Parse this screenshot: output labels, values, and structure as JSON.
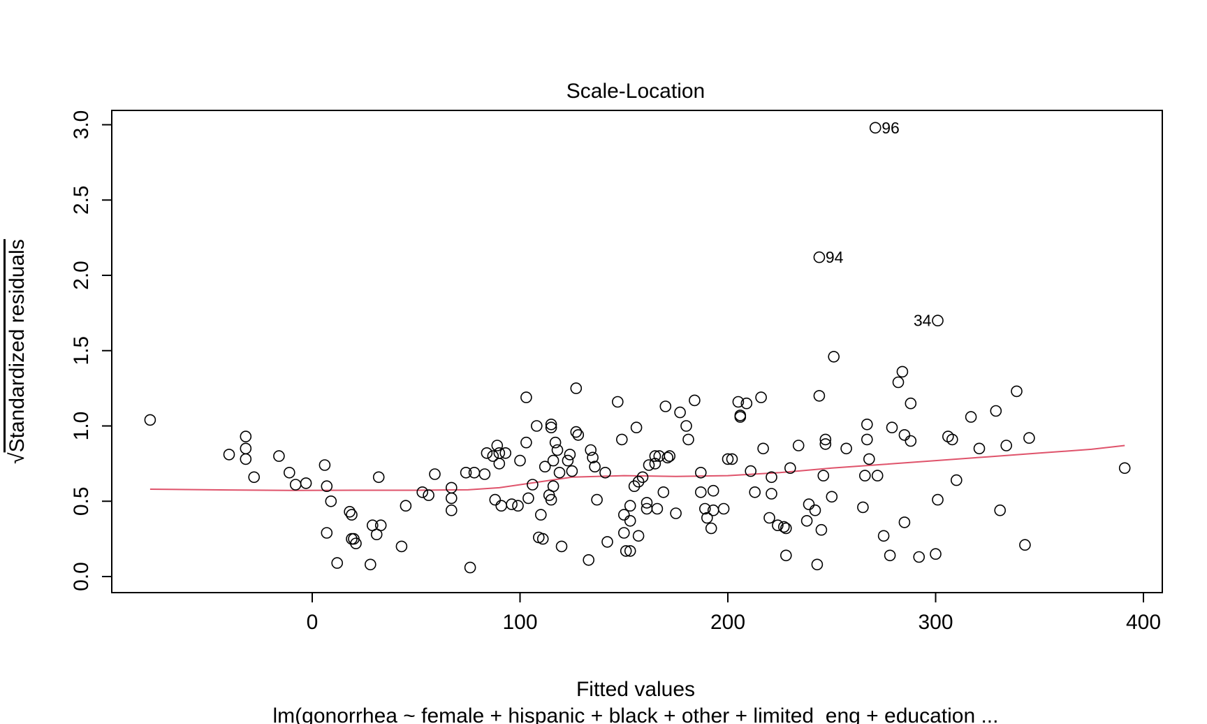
{
  "chart_data": {
    "type": "scatter",
    "title": "Scale-Location",
    "xlabel": "Fitted values",
    "ylabel": "Standardized residuals",
    "ylabel_prefix": "√",
    "subtitle": "lm(gonorrhea ~ female + hispanic + black + other + limited_eng + education  ...",
    "xlim": [
      -90,
      405
    ],
    "ylim": [
      -0.1,
      3.1
    ],
    "x_ticks": [
      0,
      100,
      200,
      300,
      400
    ],
    "y_ticks": [
      0.0,
      0.5,
      1.0,
      1.5,
      2.0,
      2.5,
      3.0
    ],
    "y_tick_labels": [
      "0.0",
      "0.5",
      "1.0",
      "1.5",
      "2.0",
      "2.5",
      "3.0"
    ],
    "grid": false,
    "colors": {
      "points": "#000000",
      "smoother": "#DF536B"
    },
    "points": [
      [
        -78,
        1.04
      ],
      [
        -40,
        0.81
      ],
      [
        -32,
        0.93
      ],
      [
        -32,
        0.85
      ],
      [
        -32,
        0.78
      ],
      [
        -28,
        0.66
      ],
      [
        -16,
        0.8
      ],
      [
        -11,
        0.69
      ],
      [
        -8,
        0.61
      ],
      [
        -3,
        0.62
      ],
      [
        6,
        0.74
      ],
      [
        7,
        0.6
      ],
      [
        7,
        0.29
      ],
      [
        9,
        0.5
      ],
      [
        12,
        0.09
      ],
      [
        18,
        0.43
      ],
      [
        19,
        0.41
      ],
      [
        19,
        0.25
      ],
      [
        20,
        0.25
      ],
      [
        21,
        0.22
      ],
      [
        28,
        0.08
      ],
      [
        29,
        0.34
      ],
      [
        31,
        0.28
      ],
      [
        32,
        0.66
      ],
      [
        33,
        0.34
      ],
      [
        43,
        0.2
      ],
      [
        45,
        0.47
      ],
      [
        53,
        0.56
      ],
      [
        56,
        0.54
      ],
      [
        59,
        0.68
      ],
      [
        67,
        0.59
      ],
      [
        67,
        0.52
      ],
      [
        67,
        0.44
      ],
      [
        74,
        0.69
      ],
      [
        76,
        0.06
      ],
      [
        78,
        0.69
      ],
      [
        83,
        0.68
      ],
      [
        84,
        0.82
      ],
      [
        87,
        0.8
      ],
      [
        88,
        0.51
      ],
      [
        89,
        0.87
      ],
      [
        90,
        0.82
      ],
      [
        90,
        0.75
      ],
      [
        91,
        0.47
      ],
      [
        93,
        0.82
      ],
      [
        96,
        0.48
      ],
      [
        99,
        0.47
      ],
      [
        100,
        0.77
      ],
      [
        103,
        0.89
      ],
      [
        103,
        1.19
      ],
      [
        104,
        0.52
      ],
      [
        106,
        0.61
      ],
      [
        108,
        1.0
      ],
      [
        109,
        0.26
      ],
      [
        110,
        0.41
      ],
      [
        111,
        0.25
      ],
      [
        112,
        0.73
      ],
      [
        114,
        0.54
      ],
      [
        115,
        0.51
      ],
      [
        115,
        1.01
      ],
      [
        115,
        0.99
      ],
      [
        116,
        0.6
      ],
      [
        116,
        0.77
      ],
      [
        117,
        0.89
      ],
      [
        118,
        0.84
      ],
      [
        119,
        0.69
      ],
      [
        120,
        0.2
      ],
      [
        123,
        0.77
      ],
      [
        124,
        0.81
      ],
      [
        125,
        0.7
      ],
      [
        127,
        0.96
      ],
      [
        127,
        1.25
      ],
      [
        128,
        0.94
      ],
      [
        133,
        0.11
      ],
      [
        134,
        0.84
      ],
      [
        135,
        0.79
      ],
      [
        136,
        0.73
      ],
      [
        137,
        0.51
      ],
      [
        141,
        0.69
      ],
      [
        142,
        0.23
      ],
      [
        147,
        1.16
      ],
      [
        149,
        0.91
      ],
      [
        150,
        0.41
      ],
      [
        150,
        0.29
      ],
      [
        151,
        0.17
      ],
      [
        153,
        0.17
      ],
      [
        153,
        0.37
      ],
      [
        153,
        0.47
      ],
      [
        155,
        0.6
      ],
      [
        156,
        0.99
      ],
      [
        157,
        0.27
      ],
      [
        157,
        0.63
      ],
      [
        159,
        0.66
      ],
      [
        161,
        0.49
      ],
      [
        161,
        0.45
      ],
      [
        162,
        0.74
      ],
      [
        165,
        0.8
      ],
      [
        165,
        0.75
      ],
      [
        166,
        0.45
      ],
      [
        167,
        0.8
      ],
      [
        169,
        0.56
      ],
      [
        170,
        1.13
      ],
      [
        171,
        0.79
      ],
      [
        172,
        0.8
      ],
      [
        175,
        0.42
      ],
      [
        177,
        1.09
      ],
      [
        180,
        1.0
      ],
      [
        181,
        0.91
      ],
      [
        184,
        1.17
      ],
      [
        187,
        0.69
      ],
      [
        187,
        0.56
      ],
      [
        189,
        0.45
      ],
      [
        190,
        0.39
      ],
      [
        192,
        0.32
      ],
      [
        193,
        0.57
      ],
      [
        193,
        0.44
      ],
      [
        198,
        0.45
      ],
      [
        200,
        0.78
      ],
      [
        202,
        0.78
      ],
      [
        205,
        1.16
      ],
      [
        206,
        1.07
      ],
      [
        206,
        1.06
      ],
      [
        209,
        1.15
      ],
      [
        211,
        0.7
      ],
      [
        213,
        0.56
      ],
      [
        216,
        1.19
      ],
      [
        217,
        0.85
      ],
      [
        220,
        0.39
      ],
      [
        221,
        0.55
      ],
      [
        221,
        0.66
      ],
      [
        224,
        0.34
      ],
      [
        227,
        0.33
      ],
      [
        228,
        0.14
      ],
      [
        228,
        0.32
      ],
      [
        230,
        0.72
      ],
      [
        234,
        0.87
      ],
      [
        238,
        0.37
      ],
      [
        239,
        0.48
      ],
      [
        242,
        0.44
      ],
      [
        243,
        0.08
      ],
      [
        244,
        1.2
      ],
      [
        245,
        0.31
      ],
      [
        246,
        0.67
      ],
      [
        247,
        0.91
      ],
      [
        247,
        0.88
      ],
      [
        250,
        0.53
      ],
      [
        251,
        1.46
      ],
      [
        257,
        0.85
      ],
      [
        265,
        0.46
      ],
      [
        266,
        0.67
      ],
      [
        267,
        1.01
      ],
      [
        267,
        0.91
      ],
      [
        268,
        0.78
      ],
      [
        272,
        0.67
      ],
      [
        275,
        0.27
      ],
      [
        278,
        0.14
      ],
      [
        279,
        0.99
      ],
      [
        282,
        1.29
      ],
      [
        284,
        1.36
      ],
      [
        285,
        0.36
      ],
      [
        285,
        0.94
      ],
      [
        288,
        1.15
      ],
      [
        288,
        0.9
      ],
      [
        292,
        0.13
      ],
      [
        300,
        0.15
      ],
      [
        301,
        0.51
      ],
      [
        306,
        0.93
      ],
      [
        308,
        0.91
      ],
      [
        310,
        0.64
      ],
      [
        317,
        1.06
      ],
      [
        321,
        0.85
      ],
      [
        329,
        1.1
      ],
      [
        331,
        0.44
      ],
      [
        334,
        0.87
      ],
      [
        339,
        1.23
      ],
      [
        343,
        0.21
      ],
      [
        345,
        0.92
      ],
      [
        391,
        0.72
      ],
      [
        244,
        2.12
      ],
      [
        271,
        2.98
      ],
      [
        301,
        1.7
      ]
    ],
    "annotations": [
      {
        "label": "96",
        "x": 271,
        "y": 2.98,
        "side": "right"
      },
      {
        "label": "94",
        "x": 244,
        "y": 2.12,
        "side": "right"
      },
      {
        "label": "34",
        "x": 301,
        "y": 1.7,
        "side": "left"
      }
    ],
    "smoother": {
      "x": [
        -78,
        -40,
        -10,
        20,
        50,
        75,
        90,
        110,
        125,
        150,
        175,
        200,
        225,
        250,
        275,
        300,
        325,
        350,
        375,
        391
      ],
      "y": [
        0.58,
        0.575,
        0.572,
        0.573,
        0.573,
        0.576,
        0.59,
        0.63,
        0.66,
        0.67,
        0.665,
        0.67,
        0.69,
        0.72,
        0.745,
        0.77,
        0.795,
        0.82,
        0.845,
        0.87
      ]
    }
  }
}
